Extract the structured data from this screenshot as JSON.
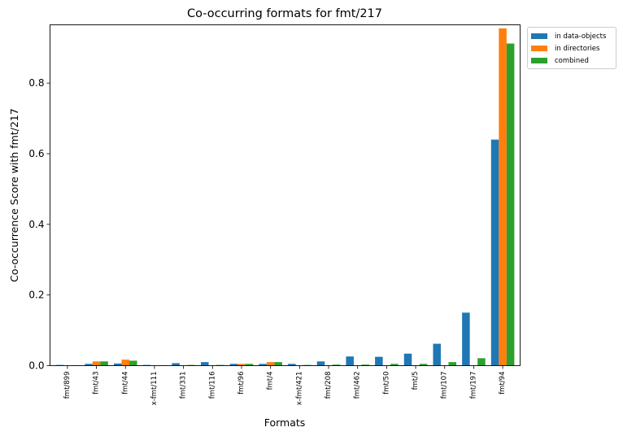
{
  "chart_data": {
    "type": "bar",
    "title": "Co-occurring formats for fmt/217",
    "xlabel": "Formats",
    "ylabel": "Co-occurrence Score with fmt/217",
    "ylim": [
      0,
      0.965
    ],
    "yticks": [
      0.0,
      0.2,
      0.4,
      0.6,
      0.8
    ],
    "ytick_labels": [
      "0.0",
      "0.2",
      "0.4",
      "0.6",
      "0.8"
    ],
    "grid": false,
    "legend_position": "outside-top-right",
    "categories": [
      "fmt/899",
      "fmt/43",
      "fmt/44",
      "x-fmt/111",
      "fmt/331",
      "fmt/116",
      "fmt/96",
      "fmt/4",
      "x-fmt/421",
      "fmt/208",
      "fmt/462",
      "fmt/50",
      "fmt/5",
      "fmt/107",
      "fmt/197",
      "fmt/94"
    ],
    "series": [
      {
        "name": "in data-objects",
        "color": "#1f77b4",
        "values": [
          0.002,
          0.005,
          0.006,
          0.002,
          0.007,
          0.01,
          0.005,
          0.005,
          0.005,
          0.012,
          0.026,
          0.025,
          0.034,
          0.062,
          0.15,
          0.64
        ]
      },
      {
        "name": "in directories",
        "color": "#ff7f0e",
        "values": [
          0.0,
          0.012,
          0.017,
          0.0,
          0.0,
          0.0,
          0.005,
          0.01,
          0.0,
          0.0,
          0.0,
          0.0,
          0.0,
          0.0,
          0.0,
          0.955
        ]
      },
      {
        "name": "combined",
        "color": "#2ca02c",
        "values": [
          0.001,
          0.012,
          0.014,
          0.001,
          0.002,
          0.002,
          0.005,
          0.01,
          0.002,
          0.003,
          0.003,
          0.005,
          0.005,
          0.01,
          0.021,
          0.912
        ]
      }
    ]
  }
}
